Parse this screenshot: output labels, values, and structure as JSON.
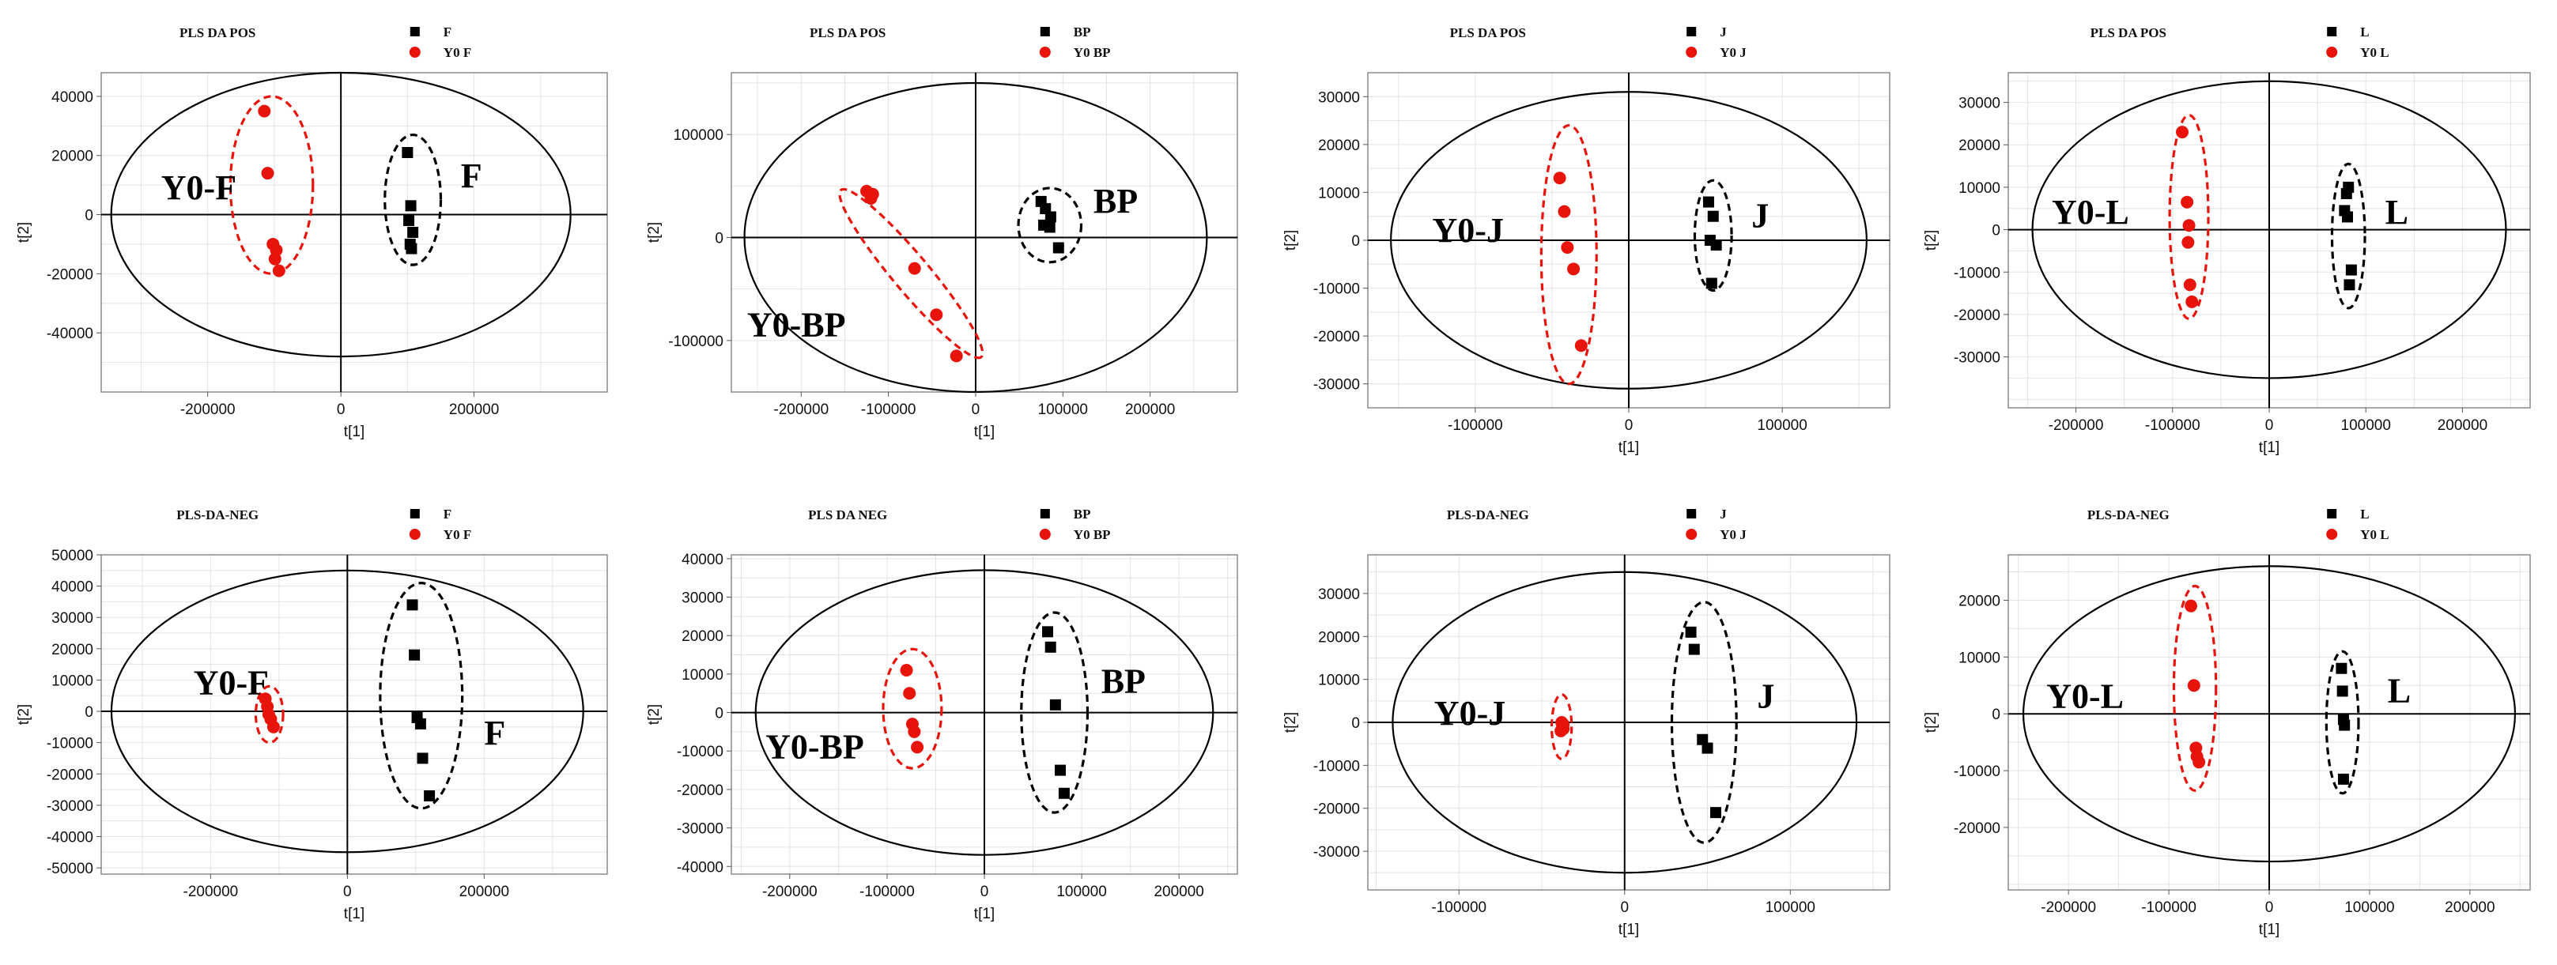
{
  "chart_data": [
    {
      "type": "scatter",
      "title": "PLS DA POS",
      "xlabel": "t[1]",
      "ylabel": "t[2]",
      "xlim": [
        -360000,
        400000
      ],
      "ylim": [
        -60000,
        48000
      ],
      "xticks": [
        -200000,
        0,
        200000
      ],
      "yticks": [
        -40000,
        -20000,
        0,
        20000,
        40000
      ],
      "ellipse": {
        "rx": 345000,
        "ry": 48000
      },
      "series": [
        {
          "name": "F",
          "marker": "square",
          "color": "#000000",
          "points": [
            [
              100000,
              21000
            ],
            [
              105000,
              3000
            ],
            [
              102000,
              -2000
            ],
            [
              108000,
              -6000
            ],
            [
              104000,
              -10000
            ],
            [
              106000,
              -11500
            ]
          ]
        },
        {
          "name": "Y0 F",
          "marker": "circle",
          "color": "#e8140c",
          "points": [
            [
              -115000,
              35000
            ],
            [
              -110000,
              14000
            ],
            [
              -102000,
              -10000
            ],
            [
              -97000,
              -12000
            ],
            [
              -99000,
              -15000
            ],
            [
              -93000,
              -19000
            ]
          ]
        }
      ],
      "legend": [
        "F",
        "Y0 F"
      ],
      "groups": [
        {
          "label": "Y0-F",
          "color": "#e8140c",
          "cx": -104000,
          "cy": 10000,
          "rx": 62000,
          "ry": 30000
        },
        {
          "label": "F",
          "color": "#000000",
          "cx": 108000,
          "cy": 5000,
          "rx": 42000,
          "ry": 22000
        }
      ],
      "group_labels": [
        {
          "text": "Y0-F",
          "x": -270000,
          "y": 9000
        },
        {
          "text": "F",
          "x": 180000,
          "y": 13000
        }
      ]
    },
    {
      "type": "scatter",
      "title": "PLS DA POS",
      "xlabel": "t[1]",
      "ylabel": "t[2]",
      "xlim": [
        -280000,
        300000
      ],
      "ylim": [
        -150000,
        160000
      ],
      "xticks": [
        -200000,
        -100000,
        0,
        100000,
        200000
      ],
      "yticks": [
        -100000,
        0,
        100000
      ],
      "ellipse": {
        "rx": 265000,
        "ry": 150000
      },
      "series": [
        {
          "name": "BP",
          "marker": "square",
          "color": "#000000",
          "points": [
            [
              75000,
              35000
            ],
            [
              80000,
              28000
            ],
            [
              86000,
              20000
            ],
            [
              78000,
              12000
            ],
            [
              85000,
              10000
            ],
            [
              95000,
              -10000
            ]
          ]
        },
        {
          "name": "Y0 BP",
          "marker": "circle",
          "color": "#e8140c",
          "points": [
            [
              -125000,
              45000
            ],
            [
              -118000,
              42000
            ],
            [
              -120000,
              38000
            ],
            [
              -70000,
              -30000
            ],
            [
              -45000,
              -75000
            ],
            [
              -22000,
              -115000
            ]
          ]
        }
      ],
      "legend": [
        "BP",
        "Y0 BP"
      ],
      "groups": [
        {
          "label": "Y0-BP",
          "color": "#e8140c",
          "cx": -74000,
          "cy": -35000,
          "rx": 100000,
          "ry": 38000,
          "angle": 50
        },
        {
          "label": "BP",
          "color": "#000000",
          "cx": 85000,
          "cy": 12000,
          "rx": 36000,
          "ry": 36000
        }
      ],
      "group_labels": [
        {
          "text": "Y0-BP",
          "x": -262000,
          "y": -85000
        },
        {
          "text": "BP",
          "x": 135000,
          "y": 35000
        }
      ]
    },
    {
      "type": "scatter",
      "title": "PLS DA POS",
      "xlabel": "t[1]",
      "ylabel": "t[2]",
      "xlim": [
        -170000,
        170000
      ],
      "ylim": [
        -35000,
        35000
      ],
      "xticks": [
        -100000,
        0,
        100000
      ],
      "yticks": [
        -30000,
        -20000,
        -10000,
        0,
        10000,
        20000,
        30000
      ],
      "ellipse": {
        "rx": 155000,
        "ry": 31000
      },
      "series": [
        {
          "name": "J",
          "marker": "square",
          "color": "#000000",
          "points": [
            [
              52000,
              8000
            ],
            [
              55000,
              5000
            ],
            [
              53000,
              0
            ],
            [
              57000,
              -1000
            ],
            [
              54000,
              -9000
            ]
          ]
        },
        {
          "name": "Y0 J",
          "marker": "circle",
          "color": "#e8140c",
          "points": [
            [
              -45000,
              13000
            ],
            [
              -42000,
              6000
            ],
            [
              -40000,
              -1500
            ],
            [
              -36000,
              -6000
            ],
            [
              -31000,
              -22000
            ]
          ]
        }
      ],
      "legend": [
        "J",
        "Y0 J"
      ],
      "groups": [
        {
          "label": "Y0-J",
          "color": "#e8140c",
          "cx": -39000,
          "cy": -3000,
          "rx": 18000,
          "ry": 27000
        },
        {
          "label": "J",
          "color": "#000000",
          "cx": 55000,
          "cy": 1000,
          "rx": 12000,
          "ry": 11500
        }
      ],
      "group_labels": [
        {
          "text": "Y0-J",
          "x": -128000,
          "y": 2000
        },
        {
          "text": "J",
          "x": 80000,
          "y": 5000
        }
      ]
    },
    {
      "type": "scatter",
      "title": "PLS DA POS",
      "xlabel": "t[1]",
      "ylabel": "t[2]",
      "xlim": [
        -270000,
        270000
      ],
      "ylim": [
        -42000,
        37000
      ],
      "xticks": [
        -200000,
        -100000,
        0,
        100000,
        200000
      ],
      "yticks": [
        -30000,
        -20000,
        -10000,
        0,
        10000,
        20000,
        30000
      ],
      "ellipse": {
        "rx": 245000,
        "ry": 35000
      },
      "series": [
        {
          "name": "L",
          "marker": "square",
          "color": "#000000",
          "points": [
            [
              82000,
              10000
            ],
            [
              80000,
              8500
            ],
            [
              78000,
              4500
            ],
            [
              81000,
              3000
            ],
            [
              85000,
              -9500
            ],
            [
              83000,
              -13000
            ]
          ]
        },
        {
          "name": "Y0 L",
          "marker": "circle",
          "color": "#e8140c",
          "points": [
            [
              -90000,
              23000
            ],
            [
              -85000,
              6500
            ],
            [
              -83000,
              1000
            ],
            [
              -84000,
              -3000
            ],
            [
              -82000,
              -13000
            ],
            [
              -80000,
              -17000
            ]
          ]
        }
      ],
      "legend": [
        "L",
        "Y0 L"
      ],
      "groups": [
        {
          "label": "Y0-L",
          "color": "#e8140c",
          "cx": -83000,
          "cy": 3000,
          "rx": 20000,
          "ry": 24000
        },
        {
          "label": "L",
          "color": "#000000",
          "cx": 82000,
          "cy": -1500,
          "rx": 17000,
          "ry": 17000
        }
      ],
      "group_labels": [
        {
          "text": "Y0-L",
          "x": -225000,
          "y": 4000
        },
        {
          "text": "L",
          "x": 120000,
          "y": 4000
        }
      ]
    },
    {
      "type": "scatter",
      "title": "PLS-DA-NEG",
      "xlabel": "t[1]",
      "ylabel": "t[2]",
      "xlim": [
        -360000,
        380000
      ],
      "ylim": [
        -52000,
        50000
      ],
      "xticks": [
        -200000,
        0,
        200000
      ],
      "yticks": [
        -50000,
        -40000,
        -30000,
        -20000,
        -10000,
        0,
        10000,
        20000,
        30000,
        40000,
        50000
      ],
      "ellipse": {
        "rx": 345000,
        "ry": 45000
      },
      "series": [
        {
          "name": "F",
          "marker": "square",
          "color": "#000000",
          "points": [
            [
              95000,
              34000
            ],
            [
              98000,
              18000
            ],
            [
              102000,
              -2000
            ],
            [
              107000,
              -4000
            ],
            [
              110000,
              -15000
            ],
            [
              120000,
              -27000
            ]
          ]
        },
        {
          "name": "Y0 F",
          "marker": "circle",
          "color": "#e8140c",
          "points": [
            [
              -120000,
              4000
            ],
            [
              -117000,
              1500
            ],
            [
              -115000,
              -1000
            ],
            [
              -112000,
              -2500
            ],
            [
              -108000,
              -5000
            ]
          ]
        }
      ],
      "legend": [
        "F",
        "Y0 F"
      ],
      "groups": [
        {
          "label": "Y0-F",
          "color": "#e8140c",
          "cx": -114000,
          "cy": -1000,
          "rx": 20000,
          "ry": 9000
        },
        {
          "label": "F",
          "color": "#000000",
          "cx": 108000,
          "cy": 5000,
          "rx": 60000,
          "ry": 36000
        }
      ],
      "group_labels": [
        {
          "text": "Y0-F",
          "x": -225000,
          "y": 9000
        },
        {
          "text": "F",
          "x": 200000,
          "y": -7000
        }
      ]
    },
    {
      "type": "scatter",
      "title": "PLS DA NEG",
      "xlabel": "t[1]",
      "ylabel": "t[2]",
      "xlim": [
        -260000,
        260000
      ],
      "ylim": [
        -42000,
        41000
      ],
      "xticks": [
        -200000,
        -100000,
        0,
        100000,
        200000
      ],
      "yticks": [
        -40000,
        -30000,
        -20000,
        -10000,
        0,
        10000,
        20000,
        30000,
        40000
      ],
      "ellipse": {
        "rx": 235000,
        "ry": 37000
      },
      "series": [
        {
          "name": "BP",
          "marker": "square",
          "color": "#000000",
          "points": [
            [
              65000,
              21000
            ],
            [
              68000,
              17000
            ],
            [
              73000,
              2000
            ],
            [
              78000,
              -15000
            ],
            [
              82000,
              -21000
            ]
          ]
        },
        {
          "name": "Y0 BP",
          "marker": "circle",
          "color": "#e8140c",
          "points": [
            [
              -80000,
              11000
            ],
            [
              -77000,
              5000
            ],
            [
              -74000,
              -3000
            ],
            [
              -72000,
              -5000
            ],
            [
              -69000,
              -9000
            ]
          ]
        }
      ],
      "legend": [
        "BP",
        "Y0 BP"
      ],
      "groups": [
        {
          "label": "Y0-BP",
          "color": "#e8140c",
          "cx": -74000,
          "cy": 1000,
          "rx": 30000,
          "ry": 15500
        },
        {
          "label": "BP",
          "color": "#000000",
          "cx": 72000,
          "cy": 0,
          "rx": 34000,
          "ry": 26000
        }
      ],
      "group_labels": [
        {
          "text": "Y0-BP",
          "x": -225000,
          "y": -9000
        },
        {
          "text": "BP",
          "x": 120000,
          "y": 8000
        }
      ]
    },
    {
      "type": "scatter",
      "title": "PLS-DA-NEG",
      "xlabel": "t[1]",
      "ylabel": "t[2]",
      "xlim": [
        -155000,
        160000
      ],
      "ylim": [
        -39000,
        39000
      ],
      "xticks": [
        -100000,
        0,
        100000
      ],
      "yticks": [
        -30000,
        -20000,
        -10000,
        0,
        10000,
        20000,
        30000
      ],
      "ellipse": {
        "rx": 140000,
        "ry": 35000
      },
      "series": [
        {
          "name": "J",
          "marker": "square",
          "color": "#000000",
          "points": [
            [
              40000,
              21000
            ],
            [
              42000,
              17000
            ],
            [
              47000,
              -4000
            ],
            [
              50000,
              -6000
            ],
            [
              55000,
              -21000
            ]
          ]
        },
        {
          "name": "Y0 J",
          "marker": "circle",
          "color": "#e8140c",
          "points": [
            [
              -38000,
              0
            ],
            [
              -37500,
              -1000
            ],
            [
              -37000,
              -1500
            ],
            [
              -38500,
              -2000
            ],
            [
              -37000,
              -500
            ]
          ]
        }
      ],
      "legend": [
        "J",
        "Y0 J"
      ],
      "groups": [
        {
          "label": "Y0-J",
          "color": "#e8140c",
          "cx": -38000,
          "cy": -1000,
          "rx": 6000,
          "ry": 7500
        },
        {
          "label": "J",
          "color": "#000000",
          "cx": 48000,
          "cy": 0,
          "rx": 19500,
          "ry": 28000
        }
      ],
      "group_labels": [
        {
          "text": "Y0-J",
          "x": -115000,
          "y": 2000
        },
        {
          "text": "J",
          "x": 80000,
          "y": 6000
        }
      ]
    },
    {
      "type": "scatter",
      "title": "PLS-DA-NEG",
      "xlabel": "t[1]",
      "ylabel": "t[2]",
      "xlim": [
        -260000,
        260000
      ],
      "ylim": [
        -31000,
        28000
      ],
      "xticks": [
        -200000,
        -100000,
        0,
        100000,
        200000
      ],
      "yticks": [
        -20000,
        -10000,
        0,
        10000,
        20000
      ],
      "ellipse": {
        "rx": 245000,
        "ry": 26000
      },
      "series": [
        {
          "name": "L",
          "marker": "square",
          "color": "#000000",
          "points": [
            [
              72000,
              8000
            ],
            [
              73000,
              4000
            ],
            [
              74000,
              -1000
            ],
            [
              75000,
              -2000
            ],
            [
              74000,
              -11500
            ]
          ]
        },
        {
          "name": "Y0 L",
          "marker": "circle",
          "color": "#e8140c",
          "points": [
            [
              -78000,
              19000
            ],
            [
              -75000,
              5000
            ],
            [
              -73000,
              -6000
            ],
            [
              -72000,
              -7500
            ],
            [
              -70000,
              -8500
            ]
          ]
        }
      ],
      "legend": [
        "L",
        "Y0 L"
      ],
      "groups": [
        {
          "label": "Y0-L",
          "color": "#e8140c",
          "cx": -74000,
          "cy": 4500,
          "rx": 21000,
          "ry": 18000
        },
        {
          "label": "L",
          "color": "#000000",
          "cx": 73000,
          "cy": -1500,
          "rx": 16000,
          "ry": 12500
        }
      ],
      "group_labels": [
        {
          "text": "Y0-L",
          "x": -222000,
          "y": 3000
        },
        {
          "text": "L",
          "x": 118000,
          "y": 4000
        }
      ]
    }
  ]
}
